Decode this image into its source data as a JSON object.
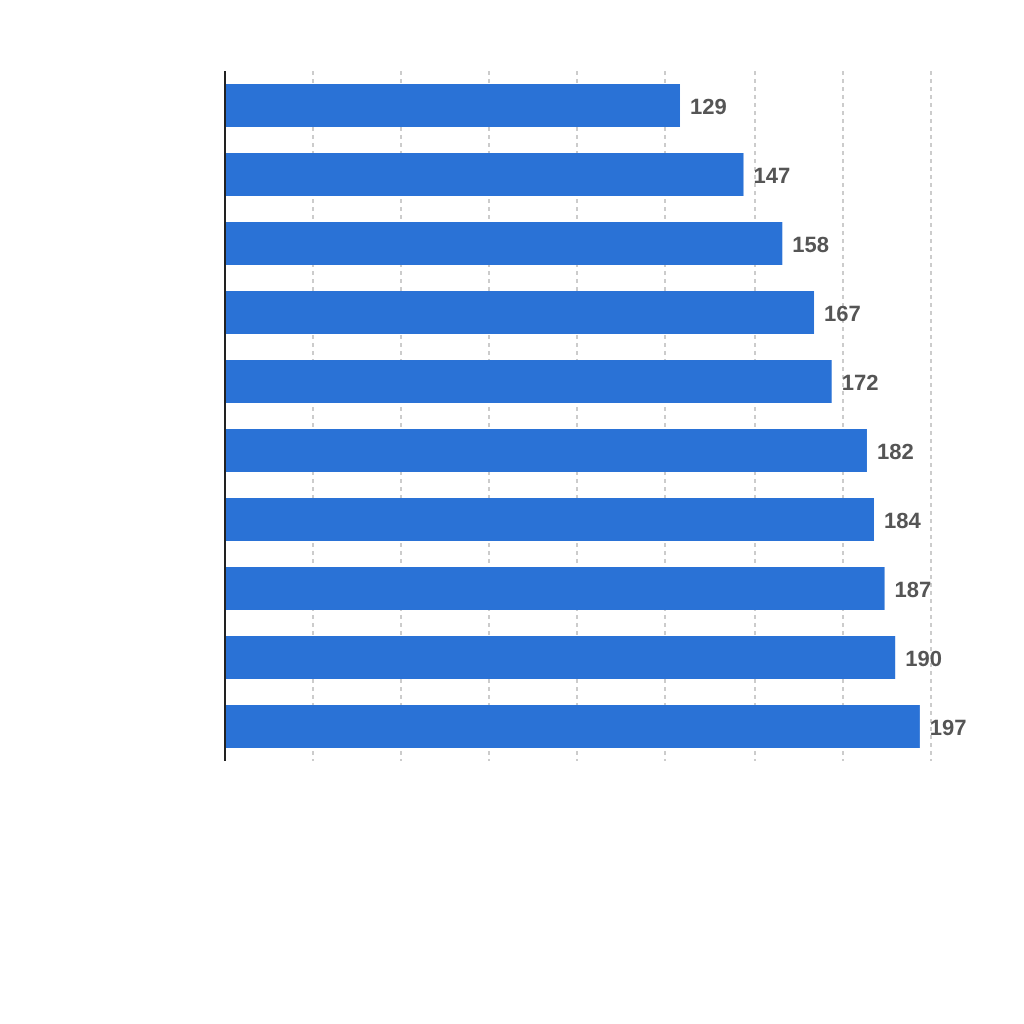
{
  "chart_data": {
    "type": "bar",
    "orientation": "horizontal",
    "categories": [
      null,
      null,
      null,
      null,
      null,
      null,
      null,
      null,
      null,
      null
    ],
    "values": [
      129,
      147,
      158,
      167,
      172,
      182,
      184,
      187,
      190,
      197
    ],
    "color": "#2a72d6",
    "data_labels": true,
    "xticks": [
      {
        "value": 0,
        "label": null
      },
      {
        "value": 25,
        "label": null
      },
      {
        "value": 50,
        "label": null
      },
      {
        "value": 75,
        "label": null
      },
      {
        "value": 100,
        "label": null
      },
      {
        "value": 125,
        "label": null
      },
      {
        "value": 150,
        "label": null
      },
      {
        "value": 175,
        "label": null
      },
      {
        "value": 200,
        "label": null
      }
    ],
    "grid": "x",
    "tick_labels": false
  }
}
